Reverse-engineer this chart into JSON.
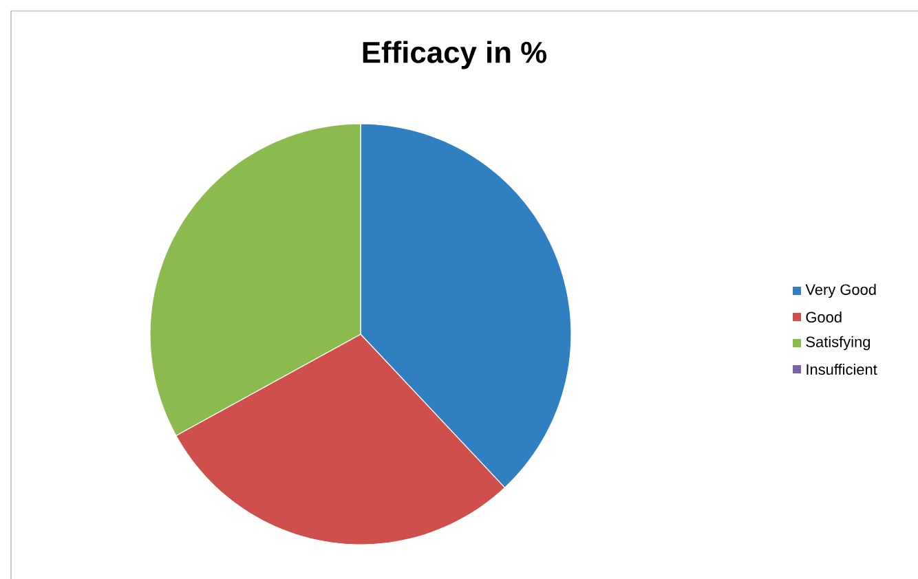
{
  "chart_data": {
    "type": "pie",
    "title": "Efficacy in %",
    "categories": [
      "Very Good",
      "Good",
      "Satisfying",
      "Insufficient"
    ],
    "values": [
      38,
      29,
      33,
      0
    ],
    "colors": [
      "#2f7fc1",
      "#cf4f4c",
      "#8bbb4f",
      "#7a62a0"
    ],
    "legend": "right"
  }
}
